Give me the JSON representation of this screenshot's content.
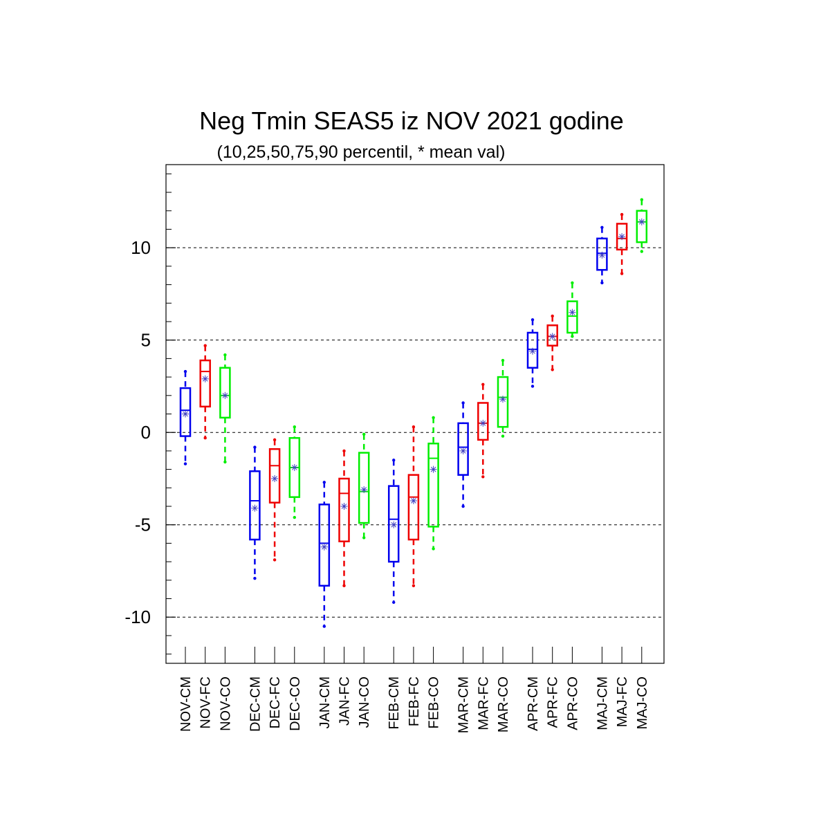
{
  "chart_data": {
    "type": "box",
    "title": "Neg Tmin SEAS5 iz NOV 2021 godine",
    "subtitle": "(10,25,50,75,90 percentil, * mean val)",
    "xlabel": "",
    "ylabel": "",
    "ylim": [
      -12.5,
      14.5
    ],
    "yticks": [
      -10,
      -5,
      0,
      5,
      10
    ],
    "ytick_labels": [
      "-10",
      "-5",
      "0",
      "5",
      "10"
    ],
    "grid": "horizontal dashed at major ticks",
    "series_colors": {
      "CM": "#0000ee",
      "FC": "#ee0000",
      "CO": "#00ee00"
    },
    "mean_marker_color": "#4040c0",
    "boxes": [
      {
        "label": "NOV-CM",
        "p10": -1.7,
        "p25": -0.2,
        "p50": 1.2,
        "p75": 2.4,
        "p90": 3.3,
        "mean": 1.0
      },
      {
        "label": "NOV-FC",
        "p10": -0.3,
        "p25": 1.4,
        "p50": 3.3,
        "p75": 3.9,
        "p90": 4.7,
        "mean": 2.9
      },
      {
        "label": "NOV-CO",
        "p10": -1.6,
        "p25": 0.8,
        "p50": 2.0,
        "p75": 3.5,
        "p90": 4.2,
        "mean": 2.0
      },
      {
        "label": "DEC-CM",
        "p10": -7.9,
        "p25": -5.8,
        "p50": -3.7,
        "p75": -2.1,
        "p90": -0.8,
        "mean": -4.1
      },
      {
        "label": "DEC-FC",
        "p10": -6.9,
        "p25": -3.8,
        "p50": -1.8,
        "p75": -0.9,
        "p90": -0.4,
        "mean": -2.5
      },
      {
        "label": "DEC-CO",
        "p10": -4.6,
        "p25": -3.5,
        "p50": -1.9,
        "p75": -0.3,
        "p90": 0.3,
        "mean": -1.9
      },
      {
        "label": "JAN-CM",
        "p10": -10.5,
        "p25": -8.3,
        "p50": -6.0,
        "p75": -3.9,
        "p90": -2.7,
        "mean": -6.2
      },
      {
        "label": "JAN-FC",
        "p10": -8.3,
        "p25": -5.9,
        "p50": -3.3,
        "p75": -2.5,
        "p90": -1.0,
        "mean": -4.0
      },
      {
        "label": "JAN-CO",
        "p10": -5.7,
        "p25": -4.9,
        "p50": -3.2,
        "p75": -1.1,
        "p90": -0.1,
        "mean": -3.1
      },
      {
        "label": "FEB-CM",
        "p10": -9.2,
        "p25": -7.0,
        "p50": -4.7,
        "p75": -2.9,
        "p90": -1.5,
        "mean": -5.0
      },
      {
        "label": "FEB-FC",
        "p10": -8.3,
        "p25": -5.8,
        "p50": -3.5,
        "p75": -2.3,
        "p90": 0.3,
        "mean": -3.7
      },
      {
        "label": "FEB-CO",
        "p10": -6.3,
        "p25": -5.1,
        "p50": -1.4,
        "p75": -0.6,
        "p90": 0.8,
        "mean": -2.0
      },
      {
        "label": "MAR-CM",
        "p10": -4.0,
        "p25": -2.3,
        "p50": -0.8,
        "p75": 0.5,
        "p90": 1.6,
        "mean": -1.0
      },
      {
        "label": "MAR-FC",
        "p10": -2.4,
        "p25": -0.4,
        "p50": 0.5,
        "p75": 1.6,
        "p90": 2.6,
        "mean": 0.5
      },
      {
        "label": "MAR-CO",
        "p10": -0.2,
        "p25": 0.3,
        "p50": 1.9,
        "p75": 3.0,
        "p90": 3.9,
        "mean": 1.8
      },
      {
        "label": "APR-CM",
        "p10": 2.5,
        "p25": 3.5,
        "p50": 4.5,
        "p75": 5.4,
        "p90": 6.1,
        "mean": 4.4
      },
      {
        "label": "APR-FC",
        "p10": 3.4,
        "p25": 4.7,
        "p50": 5.2,
        "p75": 5.8,
        "p90": 6.3,
        "mean": 5.2
      },
      {
        "label": "APR-CO",
        "p10": 5.2,
        "p25": 5.4,
        "p50": 6.3,
        "p75": 7.1,
        "p90": 8.1,
        "mean": 6.5
      },
      {
        "label": "MAJ-CM",
        "p10": 8.1,
        "p25": 8.8,
        "p50": 9.7,
        "p75": 10.5,
        "p90": 11.1,
        "mean": 9.6
      },
      {
        "label": "MAJ-FC",
        "p10": 8.6,
        "p25": 9.9,
        "p50": 10.5,
        "p75": 11.3,
        "p90": 11.8,
        "mean": 10.6
      },
      {
        "label": "MAJ-CO",
        "p10": 9.8,
        "p25": 10.3,
        "p50": 11.4,
        "p75": 12.0,
        "p90": 12.6,
        "mean": 11.4
      }
    ]
  }
}
